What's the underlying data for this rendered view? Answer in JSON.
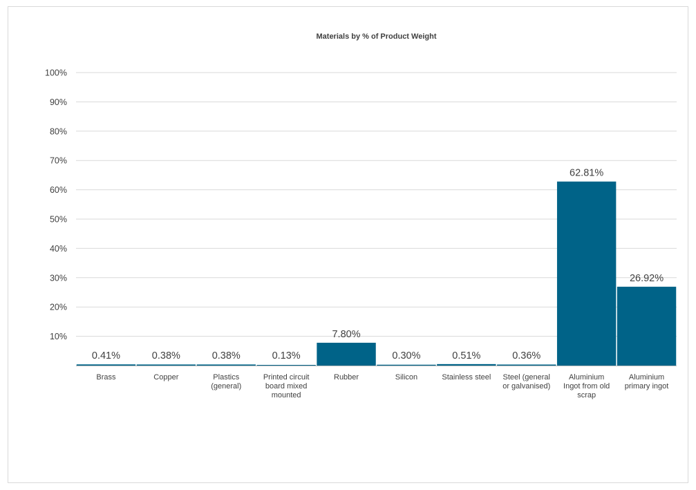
{
  "chart_data": {
    "type": "bar",
    "title": "Materials by % of Product Weight",
    "xlabel": "",
    "ylabel": "",
    "categories": [
      [
        "Brass"
      ],
      [
        "Copper"
      ],
      [
        "Plastics",
        "(general)"
      ],
      [
        "Printed circuit",
        "board mixed",
        "mounted"
      ],
      [
        "Rubber"
      ],
      [
        "Silicon"
      ],
      [
        "Stainless steel"
      ],
      [
        "Steel (general",
        "or galvanised)"
      ],
      [
        "Aluminium",
        "Ingot from old",
        "scrap"
      ],
      [
        "Aluminium",
        "primary ingot"
      ]
    ],
    "values": [
      0.41,
      0.38,
      0.38,
      0.13,
      7.8,
      0.3,
      0.51,
      0.36,
      62.81,
      26.92
    ],
    "data_labels": [
      "0.41%",
      "0.38%",
      "0.38%",
      "0.13%",
      "7.80%",
      "0.30%",
      "0.51%",
      "0.36%",
      "62.81%",
      "26.92%"
    ],
    "y_ticks": [
      10,
      20,
      30,
      40,
      50,
      60,
      70,
      80,
      90,
      100
    ],
    "y_tick_labels": [
      "10%",
      "20%",
      "30%",
      "40%",
      "50%",
      "60%",
      "70%",
      "80%",
      "90%",
      "100%"
    ],
    "ylim": [
      0,
      100
    ],
    "grid": true,
    "legend": "none",
    "bar_color": "#006388"
  }
}
